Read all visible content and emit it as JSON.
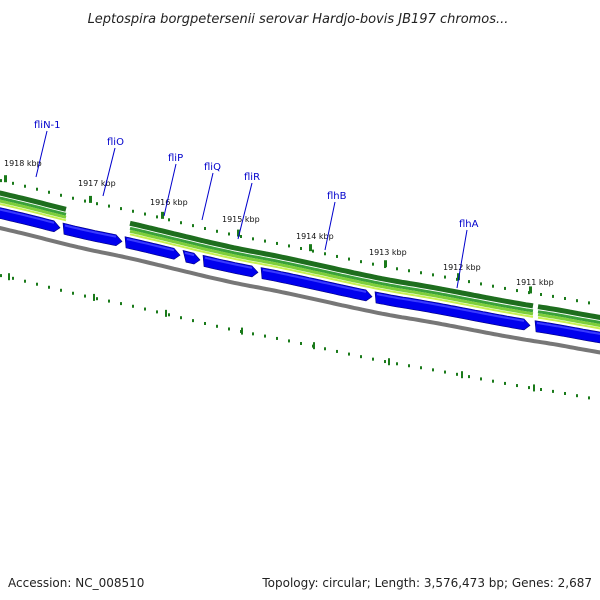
{
  "title": "Leptospira borgpetersenii serovar Hardjo-bovis JB197 chromos...",
  "footer": {
    "accession": "Accession: NC_008510",
    "summary": "Topology: circular; Length: 3,576,473 bp; Genes: 2,687"
  },
  "colors": {
    "gene_blue": "#0000ee",
    "gene_blue_light": "#3a3aff",
    "band_dark": "#1e6e1e",
    "band_mid": "#3aa13a",
    "band_light": "#7fcf3a",
    "band_lighter": "#c8f050",
    "backbone": "#777777",
    "tick": "#1a7a1a",
    "label": "#0000cc"
  },
  "genes": [
    {
      "name": "fliN-1"
    },
    {
      "name": "fliO"
    },
    {
      "name": "fliP"
    },
    {
      "name": "fliQ"
    },
    {
      "name": "fliR"
    },
    {
      "name": "flhB"
    },
    {
      "name": "flhA"
    }
  ],
  "ticks": [
    {
      "label": "1918 kbp"
    },
    {
      "label": "1917 kbp"
    },
    {
      "label": "1916 kbp"
    },
    {
      "label": "1915 kbp"
    },
    {
      "label": "1914 kbp"
    },
    {
      "label": "1913 kbp"
    },
    {
      "label": "1912 kbp"
    },
    {
      "label": "1911 kbp"
    }
  ]
}
